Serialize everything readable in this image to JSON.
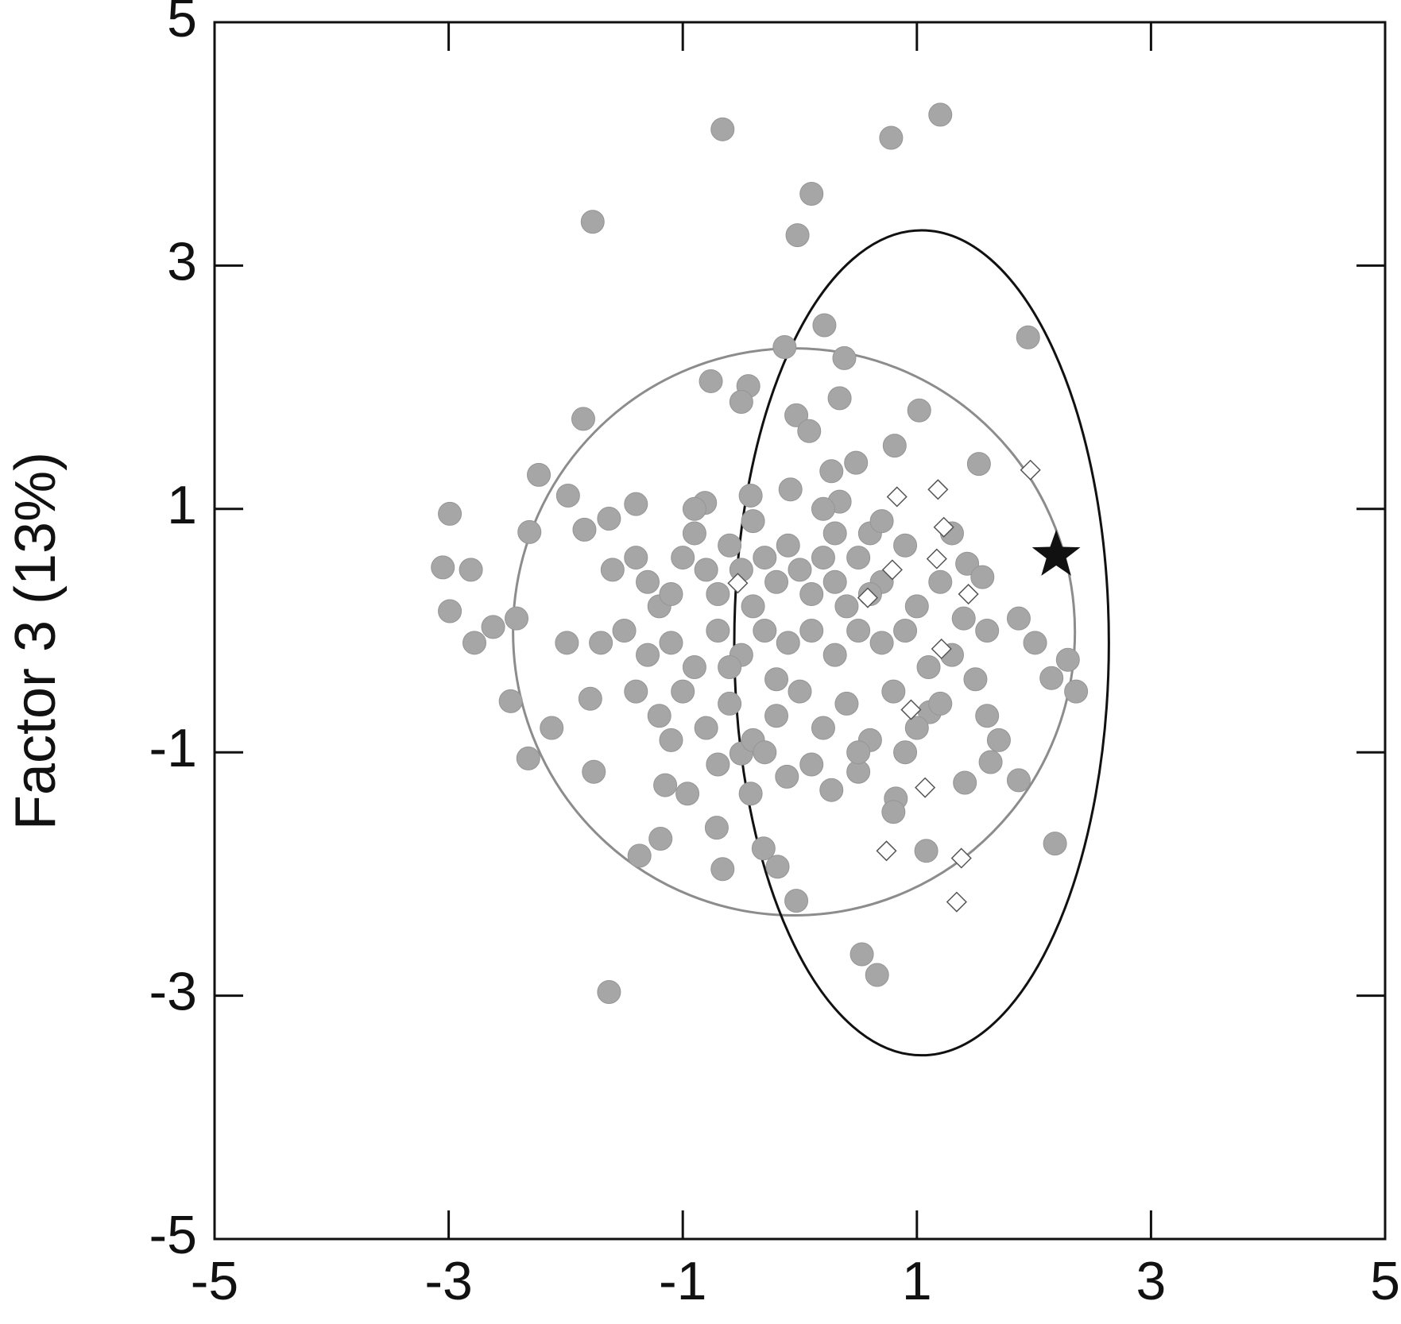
{
  "chart_data": {
    "type": "scatter",
    "y_label": "Factor 3 (13%)",
    "xlim": [
      -5,
      5
    ],
    "ylim": [
      -5,
      5
    ],
    "xticks": [
      -5,
      -3,
      -1,
      1,
      3,
      5
    ],
    "yticks": [
      -5,
      -3,
      -1,
      1,
      3,
      5
    ],
    "ellipses": [
      {
        "cx": -0.05,
        "cy": -0.01,
        "rx": 2.4,
        "ry": 2.33,
        "color": "#8c8c8c"
      },
      {
        "cx": 1.04,
        "cy": -0.1,
        "rx": 1.6,
        "ry": 3.39,
        "color": "#111111"
      }
    ],
    "series": [
      {
        "color": "#a6a6a6",
        "marker": "circle",
        "x": [
          -0.66,
          1.2,
          0.78,
          0.1,
          -1.77,
          -0.02,
          0.21,
          1.95,
          -0.13,
          0.38,
          -0.76,
          -0.44,
          0.34,
          -0.5,
          -1.85,
          1.02,
          -0.03,
          0.08,
          0.81,
          1.53,
          -2.23,
          0.48,
          0.27,
          -1.98,
          -2.99,
          -1.4,
          -0.81,
          -0.42,
          -0.08,
          0.34,
          -2.31,
          -1.84,
          -1.63,
          -3.05,
          -2.81,
          -2.99,
          -2.62,
          -2.42,
          -2.78,
          -1.99,
          -2.47,
          -2.12,
          -2.32,
          -1.79,
          -1.76,
          -1.63,
          0.53,
          0.66,
          -0.03,
          -0.66,
          -1.37,
          -1.19,
          -0.71,
          2.18,
          1.87,
          1.63,
          1.41,
          2.29,
          2.36,
          2.15,
          1.87,
          2.01,
          1.43,
          1.56,
          1.11,
          1.08,
          0.82,
          0.8,
          0.5,
          0.27,
          -0.11,
          -0.42,
          -0.31,
          -0.19,
          -0.5,
          -0.96,
          -1.15,
          -1.4,
          -1.3,
          -1.2,
          -1.1,
          -1.0,
          -0.9,
          -0.8,
          -0.7,
          -0.6,
          -0.5,
          -0.4,
          -0.3,
          -0.2,
          -0.1,
          0.0,
          0.1,
          0.2,
          0.3,
          0.4,
          0.5,
          0.6,
          0.7,
          0.9,
          1.0,
          1.2,
          1.4,
          1.6,
          -1.5,
          -1.3,
          -1.1,
          -0.9,
          -0.7,
          -0.5,
          -0.3,
          -0.1,
          0.1,
          0.3,
          0.5,
          0.7,
          0.9,
          1.1,
          1.3,
          1.5,
          -1.4,
          -1.2,
          -1.0,
          -0.8,
          -0.6,
          -0.4,
          -0.2,
          0.0,
          0.2,
          0.4,
          0.6,
          0.8,
          1.0,
          1.2,
          1.6,
          1.7,
          -1.1,
          -0.7,
          -0.3,
          0.1,
          0.5,
          0.9,
          -0.9,
          -0.4,
          0.2,
          0.7,
          1.3,
          -1.7,
          -1.6,
          -0.6,
          0.3,
          -0.2,
          0.6
        ],
        "values": [
          4.12,
          4.24,
          4.05,
          3.59,
          3.36,
          3.25,
          2.51,
          2.41,
          2.33,
          2.24,
          2.05,
          2.01,
          1.91,
          1.88,
          1.74,
          1.81,
          1.77,
          1.64,
          1.52,
          1.37,
          1.28,
          1.38,
          1.31,
          1.11,
          0.96,
          1.04,
          1.05,
          1.11,
          1.16,
          1.06,
          0.81,
          0.83,
          0.92,
          0.52,
          0.5,
          0.16,
          0.03,
          0.1,
          -0.1,
          -0.1,
          -0.58,
          -0.8,
          -1.05,
          -0.56,
          -1.16,
          -2.97,
          -2.66,
          -2.83,
          -2.22,
          -1.96,
          -1.85,
          -1.71,
          -1.62,
          -1.75,
          -1.23,
          -1.08,
          -1.25,
          -0.24,
          -0.5,
          -0.39,
          0.1,
          -0.1,
          0.55,
          0.44,
          -0.67,
          -1.81,
          -1.38,
          -1.49,
          -1.16,
          -1.31,
          -1.2,
          -1.34,
          -1.79,
          -1.94,
          -1.01,
          -1.34,
          -1.27,
          0.6,
          0.4,
          0.2,
          0.3,
          0.6,
          0.8,
          0.5,
          0.3,
          0.7,
          0.5,
          0.2,
          0.6,
          0.4,
          0.7,
          0.5,
          0.3,
          0.6,
          0.4,
          0.2,
          0.6,
          0.8,
          0.4,
          0.7,
          0.2,
          0.4,
          0.1,
          0.0,
          0.0,
          -0.2,
          -0.1,
          -0.3,
          0.0,
          -0.2,
          0.0,
          -0.1,
          0.0,
          -0.2,
          0.0,
          -0.1,
          0.0,
          -0.3,
          -0.2,
          -0.4,
          -0.5,
          -0.7,
          -0.5,
          -0.8,
          -0.6,
          -0.9,
          -0.7,
          -0.5,
          -0.8,
          -0.6,
          -0.9,
          -0.5,
          -0.8,
          -0.6,
          -0.7,
          -0.9,
          -0.9,
          -1.1,
          -1.0,
          -1.1,
          -1.0,
          -1.0,
          1.0,
          0.9,
          1.0,
          0.9,
          0.8,
          -0.1,
          0.5,
          -0.3,
          0.8,
          -0.4,
          0.3
        ]
      },
      {
        "color": "#ffffff",
        "marker": "diamond",
        "x": [
          1.97,
          0.83,
          1.18,
          1.23,
          1.17,
          0.79,
          0.58,
          1.44,
          -0.53,
          1.21,
          0.95,
          1.07,
          0.74,
          1.38,
          1.34
        ],
        "values": [
          1.32,
          1.1,
          1.16,
          0.85,
          0.59,
          0.5,
          0.27,
          0.3,
          0.39,
          -0.15,
          -0.65,
          -1.29,
          -1.81,
          -1.87,
          -2.23
        ]
      },
      {
        "color": "#111111",
        "marker": "star",
        "x": [
          2.19
        ],
        "values": [
          0.62
        ]
      }
    ]
  }
}
